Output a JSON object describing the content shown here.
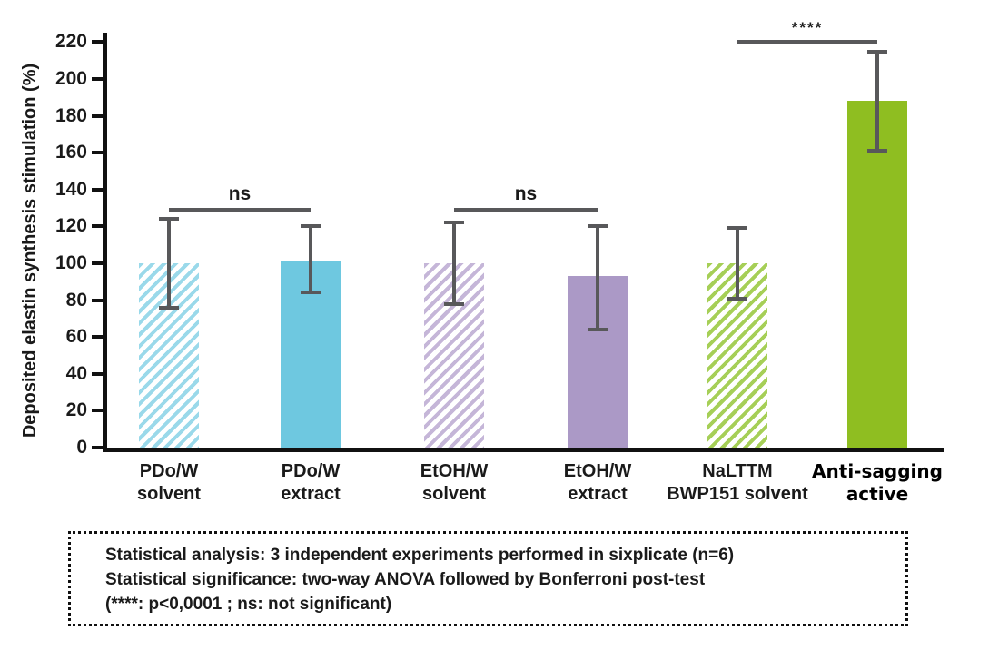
{
  "chart_data": {
    "type": "bar",
    "title": "",
    "xlabel": "",
    "ylabel": "Deposited elastin synthesis stimulation (%)",
    "ylim": [
      0,
      230
    ],
    "yticks": [
      0,
      20,
      40,
      60,
      80,
      100,
      120,
      140,
      160,
      180,
      200,
      220
    ],
    "grid": false,
    "legend": "none",
    "categories": [
      "PDo/W solvent",
      "PDo/W extract",
      "EtOH/W solvent",
      "EtOH/W extract",
      "NaLTTM BWP151 solvent",
      "Anti-sagging active"
    ],
    "values": [
      100,
      101,
      100,
      93,
      100,
      188
    ],
    "bars": [
      {
        "label_line1": "PDo/W",
        "label_line2": "solvent",
        "value": 100,
        "err_low": 76,
        "err_high": 124,
        "style": "hatched",
        "color": "#6ec8e0",
        "hatch_color": "#9ad9ea",
        "emphasis": false
      },
      {
        "label_line1": "PDo/W",
        "label_line2": "extract",
        "value": 101,
        "err_low": 84,
        "err_high": 120,
        "style": "solid",
        "color": "#6ec8e0",
        "hatch_color": "",
        "emphasis": false
      },
      {
        "label_line1": "EtOH/W",
        "label_line2": "solvent",
        "value": 100,
        "err_low": 78,
        "err_high": 122,
        "style": "hatched",
        "color": "#ab99c6",
        "hatch_color": "#c5b6d8",
        "emphasis": false
      },
      {
        "label_line1": "EtOH/W",
        "label_line2": "extract",
        "value": 93,
        "err_low": 64,
        "err_high": 120,
        "style": "solid",
        "color": "#ab99c6",
        "hatch_color": "",
        "emphasis": false
      },
      {
        "label_line1": "NaLTTM",
        "label_line2": "BWP151 solvent",
        "value": 100,
        "err_low": 81,
        "err_high": 119,
        "style": "hatched",
        "color": "#8fbe21",
        "hatch_color": "#a6cf57",
        "emphasis": false
      },
      {
        "label_line1": "Anti-sagging",
        "label_line2": "active",
        "value": 188,
        "err_low": 161,
        "err_high": 215,
        "style": "solid",
        "color": "#8fbe21",
        "hatch_color": "",
        "emphasis": true
      }
    ],
    "annotations": [
      {
        "label": "ns",
        "from": 0,
        "to": 1,
        "y": 130
      },
      {
        "label": "ns",
        "from": 2,
        "to": 3,
        "y": 130
      },
      {
        "label": "****",
        "from": 4,
        "to": 5,
        "y": 221
      }
    ],
    "colors": {
      "error_bar": "#58585a",
      "axis": "#111111"
    }
  },
  "footer_note": {
    "line1": "Statistical analysis: 3 independent experiments performed in sixplicate (n=6)",
    "line2": "Statistical significance: two-way ANOVA followed by Bonferroni post-test",
    "line3": "(****: p<0,0001 ; ns: not significant)"
  }
}
